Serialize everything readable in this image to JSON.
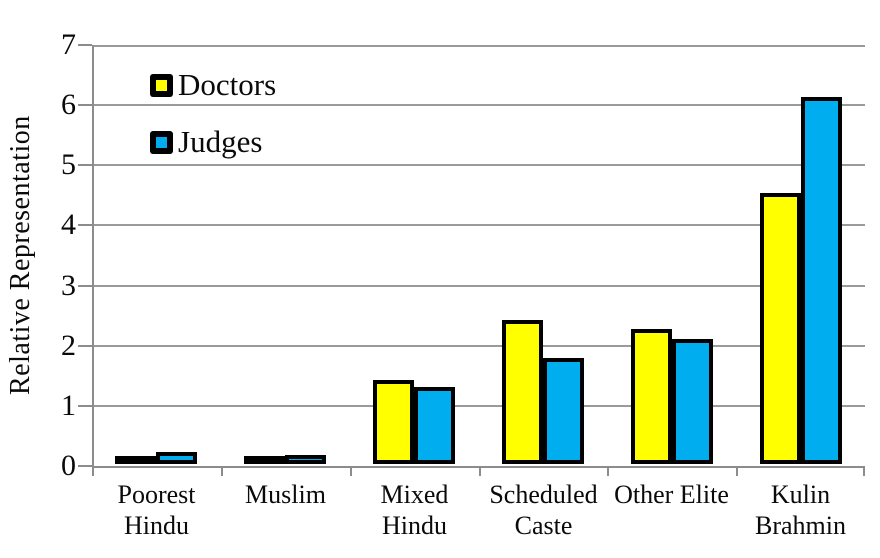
{
  "chart_data": {
    "type": "bar",
    "title": "",
    "xlabel": "",
    "ylabel": "Relative Representation",
    "ylim": [
      0,
      7
    ],
    "yticks": [
      0,
      1,
      2,
      3,
      4,
      5,
      6,
      7
    ],
    "grid": true,
    "legend_position": "top-left-inside",
    "categories": [
      "Poorest Hindu",
      "Muslim",
      "Mixed Hindu",
      "Scheduled Caste",
      "Other Elite",
      "Kulin Brahmin"
    ],
    "category_label_lines": [
      [
        "Poorest",
        "Hindu"
      ],
      [
        "Muslim"
      ],
      [
        "Mixed",
        "Hindu"
      ],
      [
        "Scheduled",
        "Caste"
      ],
      [
        "Other Elite"
      ],
      [
        "Kulin",
        "Brahmin"
      ]
    ],
    "series": [
      {
        "name": "Doctors",
        "color": "#FFFF00",
        "values": [
          0.1,
          0.13,
          1.4,
          2.4,
          2.24,
          4.5
        ]
      },
      {
        "name": "Judges",
        "color": "#00AEEF",
        "values": [
          0.2,
          0.15,
          1.28,
          1.77,
          2.08,
          6.1
        ]
      }
    ],
    "colors": {
      "bar_border": "#000000",
      "gridline": "#9a9a9a",
      "axis": "#8c8c8c",
      "text": "#0a0a0a",
      "background": "#ffffff"
    }
  }
}
